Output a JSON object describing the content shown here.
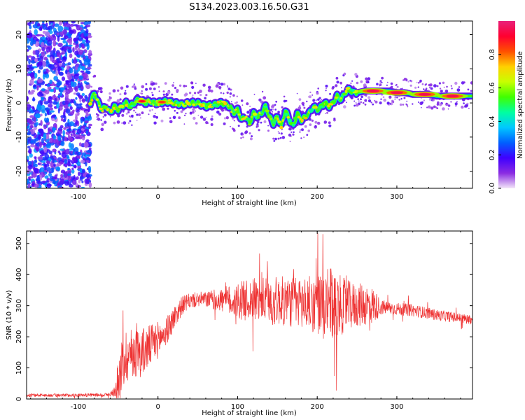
{
  "title": "S134.2023.003.16.50.G31",
  "chart_data": [
    {
      "type": "heatmap",
      "xlabel": "Height of straight line (km)",
      "ylabel": "Frequency (Hz)",
      "xlim": [
        -165,
        395
      ],
      "ylim": [
        -25,
        24
      ],
      "xticks": [
        -100,
        0,
        100,
        200,
        300
      ],
      "yticks": [
        -20,
        -10,
        0,
        10,
        20
      ],
      "colorbar": {
        "label": "Normalized spectral amplitude",
        "range": [
          0.0,
          1.0
        ],
        "ticks": [
          0.0,
          0.2,
          0.4,
          0.6,
          0.8
        ],
        "colors": [
          "#f3e6f8",
          "#8a2be2",
          "#3f00ff",
          "#0060ff",
          "#00c8ff",
          "#00ffa0",
          "#40ff00",
          "#c8ff00",
          "#ffd000",
          "#ff5000",
          "#ff0030",
          "#e8207a"
        ]
      },
      "noise_region_x": [
        -165,
        -85
      ],
      "ridge": {
        "x": [
          -85,
          -80,
          -75,
          -70,
          -65,
          -60,
          -55,
          -50,
          -45,
          -40,
          -35,
          -30,
          -25,
          -20,
          -15,
          -10,
          -5,
          0,
          10,
          20,
          30,
          40,
          50,
          60,
          70,
          80,
          90,
          95,
          100,
          105,
          110,
          115,
          120,
          125,
          130,
          135,
          140,
          145,
          150,
          155,
          160,
          165,
          170,
          175,
          180,
          185,
          190,
          195,
          200,
          205,
          210,
          215,
          220,
          225,
          230,
          235,
          240,
          245,
          250,
          260,
          270,
          280,
          290,
          300,
          310,
          320,
          330,
          340,
          350,
          360,
          370,
          380,
          395
        ],
        "y": [
          0,
          3,
          0,
          -2,
          -1,
          -3,
          -1,
          -2,
          -1,
          0,
          -1,
          0,
          1,
          0.5,
          0,
          0.5,
          0,
          0,
          0.5,
          0,
          -0.5,
          0,
          0,
          -1,
          -0.5,
          0,
          -1,
          -3,
          -2,
          -5,
          -4,
          -6,
          -3,
          -4,
          -3,
          -1,
          -4,
          -6,
          -4,
          -7,
          -2,
          -5,
          -7,
          -3,
          -5,
          -4,
          -3,
          -1,
          -2,
          -1,
          0,
          -1,
          0,
          2,
          1,
          3,
          4,
          3,
          3,
          3.5,
          3.5,
          3.5,
          3.5,
          3,
          3,
          2.5,
          2.5,
          2.5,
          2,
          2,
          2,
          2,
          2
        ],
        "peak": {
          "x": [
            -20,
            5,
            270,
            300,
            335,
            370
          ],
          "amp": [
            0.9,
            0.85,
            0.95,
            0.95,
            0.95,
            0.95
          ]
        }
      }
    },
    {
      "type": "line",
      "xlabel": "Height of straight line (km)",
      "ylabel": "SNR (10 * v/v)",
      "xlim": [
        -165,
        395
      ],
      "ylim": [
        0,
        540
      ],
      "xticks": [
        -100,
        0,
        100,
        200,
        300
      ],
      "yticks": [
        0,
        100,
        200,
        300,
        400,
        500
      ],
      "color": "#ee3333",
      "envelope": {
        "x": [
          -165,
          -100,
          -60,
          -55,
          -50,
          -45,
          -40,
          -30,
          -20,
          -10,
          0,
          10,
          20,
          30,
          40,
          50,
          60,
          80,
          100,
          120,
          150,
          180,
          200,
          210,
          220,
          230,
          240,
          250,
          260,
          270,
          280,
          300,
          320,
          350,
          395
        ],
        "median": [
          12,
          12,
          14,
          25,
          60,
          110,
          140,
          150,
          150,
          170,
          190,
          215,
          260,
          300,
          315,
          320,
          320,
          318,
          315,
          320,
          315,
          310,
          305,
          300,
          300,
          300,
          300,
          300,
          305,
          300,
          295,
          290,
          285,
          270,
          255
        ],
        "spread": [
          5,
          5,
          6,
          20,
          60,
          90,
          90,
          80,
          80,
          70,
          60,
          45,
          40,
          30,
          25,
          25,
          25,
          40,
          60,
          70,
          80,
          85,
          95,
          120,
          120,
          95,
          80,
          70,
          70,
          60,
          25,
          20,
          20,
          18,
          15
        ]
      }
    }
  ]
}
